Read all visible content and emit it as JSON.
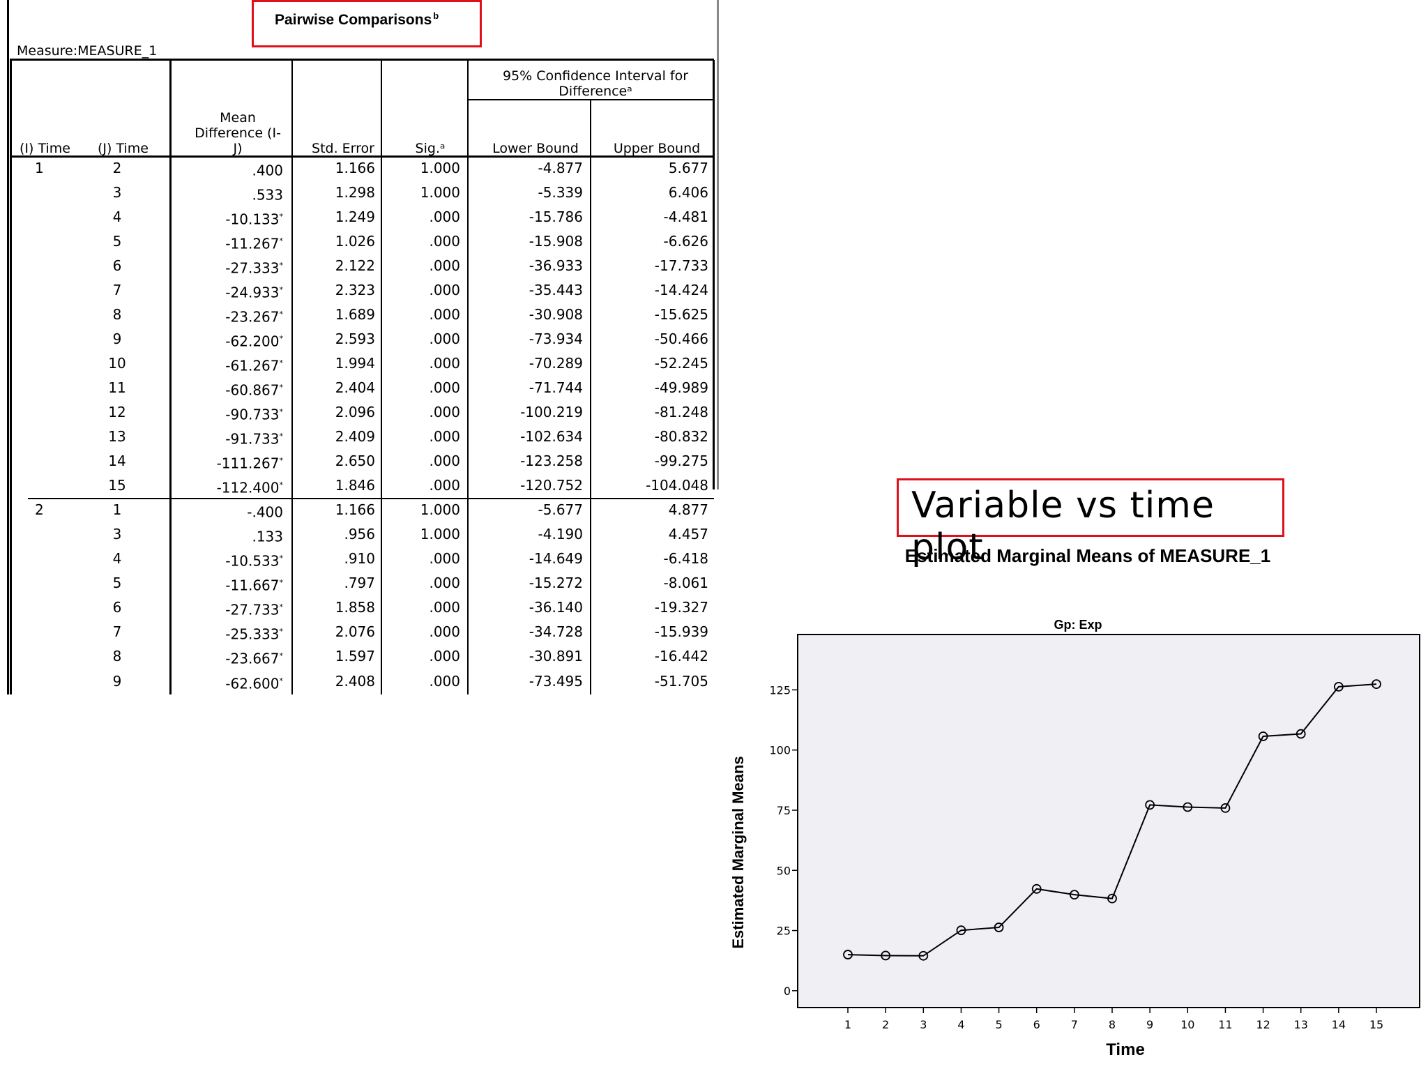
{
  "table": {
    "title": "Pairwise Comparisons",
    "title_sup": "b",
    "measure_label": "Measure:MEASURE_1",
    "headers": {
      "i_time": "(I) Time",
      "j_time": "(J) Time",
      "mean_diff_1": "Mean",
      "mean_diff_2": "Difference (I-",
      "mean_diff_3": "J)",
      "std_error": "Std. Error",
      "sig": "Sig.ᵃ",
      "ci_1": "95% Confidence Interval for",
      "ci_2": "Differenceᵃ",
      "lower": "Lower Bound",
      "upper": "Upper Bound"
    },
    "rows": [
      {
        "i": "1",
        "j": "2",
        "md": ".400",
        "star": "",
        "se": "1.166",
        "sig": "1.000",
        "lb": "-4.877",
        "ub": "5.677"
      },
      {
        "i": "",
        "j": "3",
        "md": ".533",
        "star": "",
        "se": "1.298",
        "sig": "1.000",
        "lb": "-5.339",
        "ub": "6.406"
      },
      {
        "i": "",
        "j": "4",
        "md": "-10.133",
        "star": "*",
        "se": "1.249",
        "sig": ".000",
        "lb": "-15.786",
        "ub": "-4.481"
      },
      {
        "i": "",
        "j": "5",
        "md": "-11.267",
        "star": "*",
        "se": "1.026",
        "sig": ".000",
        "lb": "-15.908",
        "ub": "-6.626"
      },
      {
        "i": "",
        "j": "6",
        "md": "-27.333",
        "star": "*",
        "se": "2.122",
        "sig": ".000",
        "lb": "-36.933",
        "ub": "-17.733"
      },
      {
        "i": "",
        "j": "7",
        "md": "-24.933",
        "star": "*",
        "se": "2.323",
        "sig": ".000",
        "lb": "-35.443",
        "ub": "-14.424"
      },
      {
        "i": "",
        "j": "8",
        "md": "-23.267",
        "star": "*",
        "se": "1.689",
        "sig": ".000",
        "lb": "-30.908",
        "ub": "-15.625"
      },
      {
        "i": "",
        "j": "9",
        "md": "-62.200",
        "star": "*",
        "se": "2.593",
        "sig": ".000",
        "lb": "-73.934",
        "ub": "-50.466"
      },
      {
        "i": "",
        "j": "10",
        "md": "-61.267",
        "star": "*",
        "se": "1.994",
        "sig": ".000",
        "lb": "-70.289",
        "ub": "-52.245"
      },
      {
        "i": "",
        "j": "11",
        "md": "-60.867",
        "star": "*",
        "se": "2.404",
        "sig": ".000",
        "lb": "-71.744",
        "ub": "-49.989"
      },
      {
        "i": "",
        "j": "12",
        "md": "-90.733",
        "star": "*",
        "se": "2.096",
        "sig": ".000",
        "lb": "-100.219",
        "ub": "-81.248"
      },
      {
        "i": "",
        "j": "13",
        "md": "-91.733",
        "star": "*",
        "se": "2.409",
        "sig": ".000",
        "lb": "-102.634",
        "ub": "-80.832"
      },
      {
        "i": "",
        "j": "14",
        "md": "-111.267",
        "star": "*",
        "se": "2.650",
        "sig": ".000",
        "lb": "-123.258",
        "ub": "-99.275"
      },
      {
        "i": "",
        "j": "15",
        "md": "-112.400",
        "star": "*",
        "se": "1.846",
        "sig": ".000",
        "lb": "-120.752",
        "ub": "-104.048"
      },
      {
        "i": "2",
        "j": "1",
        "md": "-.400",
        "star": "",
        "se": "1.166",
        "sig": "1.000",
        "lb": "-5.677",
        "ub": "4.877"
      },
      {
        "i": "",
        "j": "3",
        "md": ".133",
        "star": "",
        "se": ".956",
        "sig": "1.000",
        "lb": "-4.190",
        "ub": "4.457"
      },
      {
        "i": "",
        "j": "4",
        "md": "-10.533",
        "star": "*",
        "se": ".910",
        "sig": ".000",
        "lb": "-14.649",
        "ub": "-6.418"
      },
      {
        "i": "",
        "j": "5",
        "md": "-11.667",
        "star": "*",
        "se": ".797",
        "sig": ".000",
        "lb": "-15.272",
        "ub": "-8.061"
      },
      {
        "i": "",
        "j": "6",
        "md": "-27.733",
        "star": "*",
        "se": "1.858",
        "sig": ".000",
        "lb": "-36.140",
        "ub": "-19.327"
      },
      {
        "i": "",
        "j": "7",
        "md": "-25.333",
        "star": "*",
        "se": "2.076",
        "sig": ".000",
        "lb": "-34.728",
        "ub": "-15.939"
      },
      {
        "i": "",
        "j": "8",
        "md": "-23.667",
        "star": "*",
        "se": "1.597",
        "sig": ".000",
        "lb": "-30.891",
        "ub": "-16.442"
      },
      {
        "i": "",
        "j": "9",
        "md": "-62.600",
        "star": "*",
        "se": "2.408",
        "sig": ".000",
        "lb": "-73.495",
        "ub": "-51.705"
      }
    ]
  },
  "plot_heading": "Variable vs time plot",
  "colors": {
    "highlight_border": "#e0101a",
    "plot_background": "#f0eff3",
    "line": "#000000"
  },
  "chart_data": {
    "type": "line",
    "title": "Estimated Marginal Means of MEASURE_1",
    "subtitle": "Gp: Exp",
    "xlabel": "Time",
    "ylabel": "Estimated Marginal Means",
    "categories": [
      "1",
      "2",
      "3",
      "4",
      "5",
      "6",
      "7",
      "8",
      "9",
      "10",
      "11",
      "12",
      "13",
      "14",
      "15"
    ],
    "values": [
      15,
      14.6,
      14.5,
      25.1,
      26.3,
      42.3,
      39.9,
      38.3,
      77.2,
      76.3,
      75.9,
      105.7,
      106.7,
      126.3,
      127.4
    ],
    "yticks": [
      0,
      25,
      50,
      75,
      100,
      125
    ],
    "ylim": [
      -7,
      148
    ],
    "grid": false,
    "markers": "open-circle"
  }
}
